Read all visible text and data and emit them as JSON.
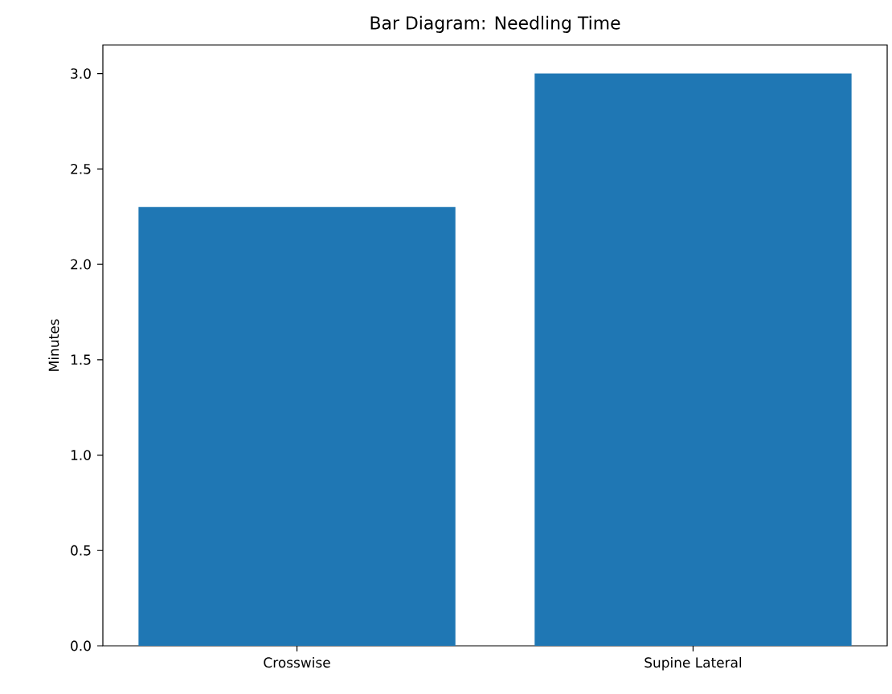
{
  "chart_data": {
    "type": "bar",
    "title": "Bar Diagram: Needling Time",
    "ylabel": "Minutes",
    "categories": [
      "Crosswise",
      "Supine Lateral"
    ],
    "values": [
      2.3,
      3.0
    ],
    "color": "#1f77b4",
    "ylim": [
      0,
      3.15
    ],
    "yticks": [
      {
        "value": 0,
        "label": "0.0"
      },
      {
        "value": 0.5,
        "label": "0.5"
      },
      {
        "value": 1,
        "label": "1.0"
      },
      {
        "value": 1.5,
        "label": "1.5"
      },
      {
        "value": 2,
        "label": "2.0"
      },
      {
        "value": 2.5,
        "label": "2.5"
      },
      {
        "value": 3,
        "label": "3.0"
      }
    ],
    "grid": false
  }
}
